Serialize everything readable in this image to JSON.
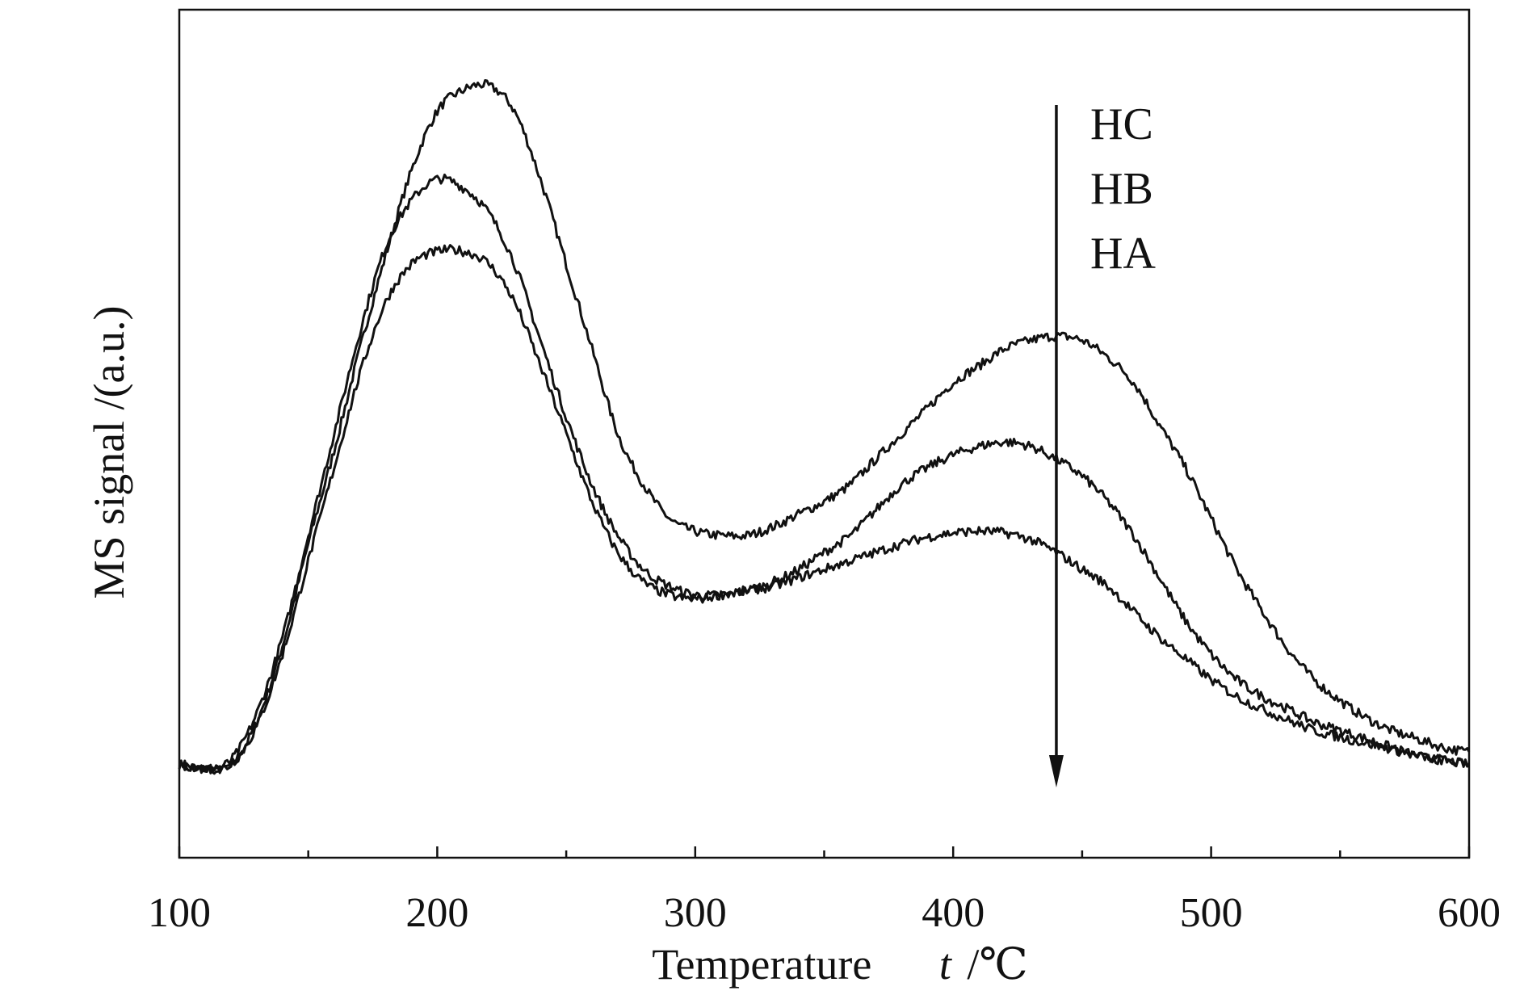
{
  "chart_data": {
    "type": "line",
    "xlabel": "Temperature",
    "xlabel_symbol": "t",
    "xlabel_unit": "/℃",
    "ylabel": "MS signal  /(a.u.)",
    "xlim": [
      100,
      600
    ],
    "ylim": [
      0,
      1
    ],
    "x_ticks": [
      100,
      200,
      300,
      400,
      500,
      600
    ],
    "x_minor_ticks": [
      150,
      250,
      350,
      450,
      550
    ],
    "y_ticks_shown": false,
    "grid": false,
    "legend_placement": "top-right",
    "legend_labels": [
      "HC",
      "HB",
      "HA"
    ],
    "arrow_x": 440,
    "arrow_direction": "down",
    "series": [
      {
        "name": "HC",
        "x": [
          100,
          110,
          120,
          130,
          140,
          150,
          160,
          170,
          180,
          190,
          200,
          210,
          220,
          230,
          240,
          250,
          260,
          270,
          280,
          290,
          300,
          310,
          320,
          330,
          340,
          350,
          360,
          370,
          380,
          390,
          400,
          410,
          420,
          430,
          440,
          450,
          460,
          470,
          480,
          490,
          500,
          510,
          520,
          530,
          540,
          550,
          560,
          570,
          580,
          590,
          600
        ],
        "y": [
          0.11,
          0.105,
          0.11,
          0.16,
          0.25,
          0.37,
          0.48,
          0.6,
          0.71,
          0.81,
          0.88,
          0.905,
          0.91,
          0.88,
          0.8,
          0.7,
          0.6,
          0.5,
          0.44,
          0.4,
          0.385,
          0.38,
          0.38,
          0.39,
          0.405,
          0.42,
          0.44,
          0.47,
          0.5,
          0.53,
          0.56,
          0.58,
          0.6,
          0.61,
          0.615,
          0.61,
          0.59,
          0.56,
          0.51,
          0.46,
          0.4,
          0.34,
          0.29,
          0.245,
          0.21,
          0.185,
          0.165,
          0.15,
          0.14,
          0.13,
          0.125
        ]
      },
      {
        "name": "HB",
        "x": [
          100,
          110,
          120,
          130,
          140,
          150,
          160,
          170,
          180,
          190,
          200,
          210,
          220,
          230,
          240,
          250,
          260,
          270,
          280,
          290,
          300,
          310,
          320,
          330,
          340,
          350,
          360,
          370,
          380,
          390,
          400,
          410,
          420,
          430,
          440,
          450,
          460,
          470,
          480,
          490,
          500,
          510,
          520,
          530,
          540,
          550,
          560,
          570,
          580,
          590,
          600
        ],
        "y": [
          0.11,
          0.105,
          0.115,
          0.17,
          0.26,
          0.38,
          0.5,
          0.62,
          0.72,
          0.775,
          0.8,
          0.79,
          0.76,
          0.7,
          0.61,
          0.52,
          0.44,
          0.38,
          0.34,
          0.32,
          0.31,
          0.31,
          0.315,
          0.325,
          0.34,
          0.36,
          0.38,
          0.41,
          0.44,
          0.46,
          0.475,
          0.485,
          0.49,
          0.485,
          0.47,
          0.45,
          0.42,
          0.38,
          0.33,
          0.28,
          0.24,
          0.21,
          0.19,
          0.175,
          0.16,
          0.15,
          0.14,
          0.13,
          0.12,
          0.115,
          0.11
        ]
      },
      {
        "name": "HA",
        "x": [
          100,
          110,
          120,
          130,
          140,
          150,
          160,
          170,
          180,
          190,
          200,
          210,
          220,
          230,
          240,
          250,
          260,
          270,
          280,
          290,
          300,
          310,
          320,
          330,
          340,
          350,
          360,
          370,
          380,
          390,
          400,
          410,
          420,
          430,
          440,
          450,
          460,
          470,
          480,
          490,
          500,
          510,
          520,
          530,
          540,
          550,
          560,
          570,
          580,
          590,
          600
        ],
        "y": [
          0.11,
          0.105,
          0.11,
          0.155,
          0.24,
          0.35,
          0.46,
          0.57,
          0.655,
          0.7,
          0.715,
          0.715,
          0.7,
          0.655,
          0.58,
          0.5,
          0.42,
          0.36,
          0.325,
          0.31,
          0.305,
          0.31,
          0.315,
          0.32,
          0.33,
          0.34,
          0.35,
          0.36,
          0.37,
          0.378,
          0.383,
          0.385,
          0.383,
          0.375,
          0.36,
          0.34,
          0.32,
          0.29,
          0.26,
          0.235,
          0.21,
          0.19,
          0.175,
          0.162,
          0.15,
          0.142,
          0.135,
          0.128,
          0.12,
          0.115,
          0.11
        ]
      }
    ]
  }
}
